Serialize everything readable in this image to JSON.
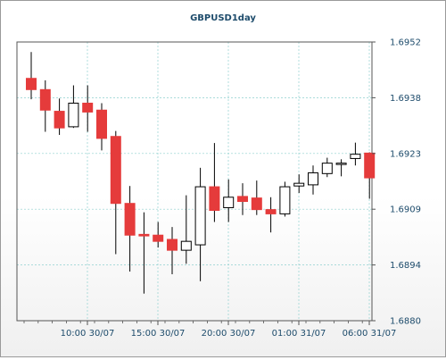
{
  "chart_data": {
    "type": "candlestick",
    "title": "GBPUSD1day",
    "ylim": [
      1.688,
      1.6952
    ],
    "y_ticks": [
      "1.6952",
      "1.6938",
      "1.6923",
      "1.6909",
      "1.6894",
      "1.6880"
    ],
    "x_tick_labels": [
      "10:00 30/07",
      "15:00 30/07",
      "20:00 30/07",
      "01:00 31/07",
      "06:00 31/07"
    ],
    "grid": true,
    "colors": {
      "up": "#ffffff",
      "down": "#e53b3b",
      "grid": "#8fd0cf",
      "axis_text": "#1d4b6b",
      "wick": "#000000"
    },
    "candles": [
      {
        "o": 1.69426,
        "h": 1.69494,
        "l": 1.69372,
        "c": 1.69397
      },
      {
        "o": 1.69397,
        "h": 1.69421,
        "l": 1.69288,
        "c": 1.69344
      },
      {
        "o": 1.69341,
        "h": 1.69374,
        "l": 1.6928,
        "c": 1.69298
      },
      {
        "o": 1.69301,
        "h": 1.69408,
        "l": 1.69298,
        "c": 1.69362
      },
      {
        "o": 1.69362,
        "h": 1.69408,
        "l": 1.69288,
        "c": 1.69339
      },
      {
        "o": 1.69344,
        "h": 1.69362,
        "l": 1.6924,
        "c": 1.69271
      },
      {
        "o": 1.69276,
        "h": 1.6929,
        "l": 1.68972,
        "c": 1.69103
      },
      {
        "o": 1.69103,
        "h": 1.69148,
        "l": 1.68927,
        "c": 1.69021
      },
      {
        "o": 1.69023,
        "h": 1.6908,
        "l": 1.6887,
        "c": 1.69019
      },
      {
        "o": 1.69021,
        "h": 1.69055,
        "l": 1.68989,
        "c": 1.69005
      },
      {
        "o": 1.6901,
        "h": 1.69042,
        "l": 1.6892,
        "c": 1.68982
      },
      {
        "o": 1.68982,
        "h": 1.69124,
        "l": 1.68947,
        "c": 1.69005
      },
      {
        "o": 1.68996,
        "h": 1.69195,
        "l": 1.68902,
        "c": 1.69146
      },
      {
        "o": 1.69146,
        "h": 1.69259,
        "l": 1.69055,
        "c": 1.69085
      },
      {
        "o": 1.69092,
        "h": 1.69165,
        "l": 1.69055,
        "c": 1.69119
      },
      {
        "o": 1.69121,
        "h": 1.69155,
        "l": 1.69073,
        "c": 1.69108
      },
      {
        "o": 1.69117,
        "h": 1.69162,
        "l": 1.69073,
        "c": 1.69087
      },
      {
        "o": 1.69087,
        "h": 1.69119,
        "l": 1.69028,
        "c": 1.69076
      },
      {
        "o": 1.69076,
        "h": 1.69159,
        "l": 1.69069,
        "c": 1.69146
      },
      {
        "o": 1.69148,
        "h": 1.69178,
        "l": 1.6913,
        "c": 1.69155
      },
      {
        "o": 1.69151,
        "h": 1.69201,
        "l": 1.69126,
        "c": 1.69182
      },
      {
        "o": 1.6918,
        "h": 1.69221,
        "l": 1.69171,
        "c": 1.69207
      },
      {
        "o": 1.69205,
        "h": 1.69217,
        "l": 1.69173,
        "c": 1.69207
      },
      {
        "o": 1.69219,
        "h": 1.6926,
        "l": 1.69201,
        "c": 1.6923
      },
      {
        "o": 1.69233,
        "h": 1.69235,
        "l": 1.69115,
        "c": 1.69169
      }
    ]
  }
}
